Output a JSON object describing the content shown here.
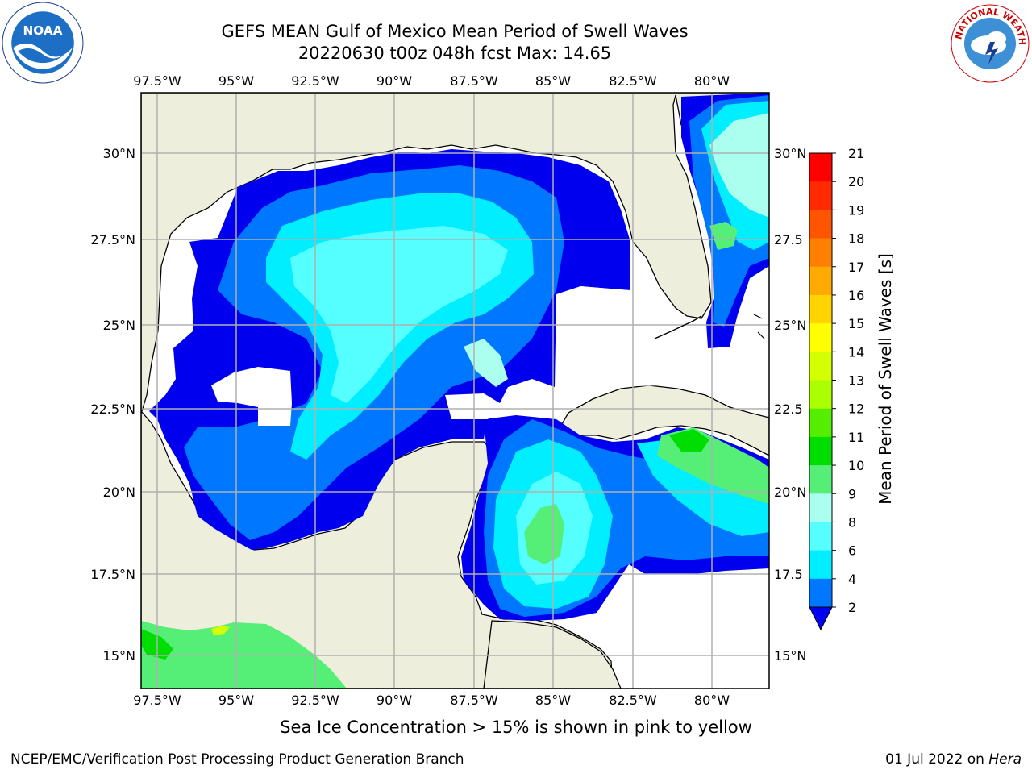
{
  "title_line1": "GEFS MEAN Gulf of Mexico Mean Period of Swell Waves",
  "title_line2": "20220630 t00z 048h fcst   Max: 14.65",
  "lon_labels": [
    "97.5°W",
    "95°W",
    "92.5°W",
    "90°W",
    "87.5°W",
    "85°W",
    "82.5°W",
    "80°W"
  ],
  "lat_labels": [
    "30°N",
    "27.5°N",
    "25°N",
    "22.5°N",
    "20°N",
    "17.5°N",
    "15°N"
  ],
  "lat_labels_right": [
    "30°N",
    "27.5",
    "25°N",
    "22.5",
    "20°N",
    "17.5",
    "15°N"
  ],
  "colorbar": {
    "title": "Mean Period of Swell Waves [s]",
    "ticks": [
      "21",
      "20",
      "19",
      "18",
      "17",
      "16",
      "15",
      "14",
      "13",
      "12",
      "11",
      "10",
      "9",
      "8",
      "6",
      "4",
      "2"
    ],
    "colors": [
      "#ff0000",
      "#ff2a00",
      "#ff5500",
      "#ff8000",
      "#ffaa00",
      "#ffd400",
      "#ffff00",
      "#d4ff00",
      "#aaff00",
      "#55ee00",
      "#00dd00",
      "#55ee77",
      "#aaffee",
      "#55ffff",
      "#00eeff",
      "#0077ff",
      "#0000ee"
    ]
  },
  "colors": {
    "land": "#eeeedd",
    "ocean_no_data": "#ffffff",
    "grid": "#b0b0b0"
  },
  "sea_ice_note": "Sea Ice Concentration > 15% is shown in pink to yellow",
  "footer_left": "NCEP/EMC/Verification Post Processing Product Generation Branch",
  "footer_date": "01 Jul 2022 on ",
  "footer_host": "Hera",
  "logos": {
    "left": "noaa-logo",
    "right": "nws-logo"
  }
}
